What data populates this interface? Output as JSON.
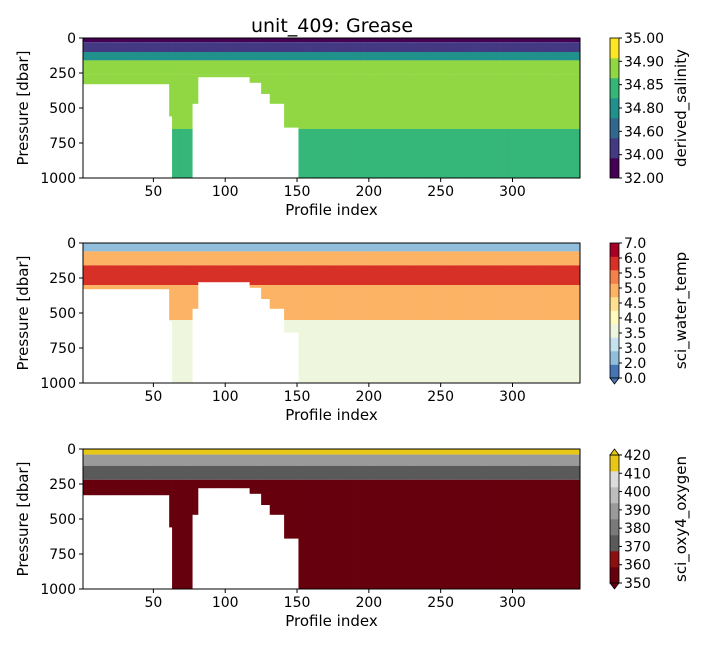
{
  "figure": {
    "title": "unit_409: Grease"
  },
  "chart_data": [
    {
      "type": "heatmap",
      "title": "",
      "xlabel": "Profile index",
      "ylabel": "Pressure [dbar]",
      "xlim": [
        1,
        347
      ],
      "ylim": [
        1000,
        0
      ],
      "xticks": [
        50,
        100,
        150,
        200,
        250,
        300
      ],
      "yticks": [
        0,
        250,
        500,
        750,
        1000
      ],
      "colorbar": {
        "label": "derived_salinity",
        "levels": [
          32.0,
          34.0,
          34.6,
          34.8,
          34.85,
          34.9,
          35.0
        ],
        "tick_labels": [
          "32.00",
          "34.00",
          "34.60",
          "34.80",
          "34.85",
          "34.90",
          "35.00"
        ],
        "colors": [
          "#440154",
          "#443983",
          "#31688e",
          "#21918c",
          "#35b779",
          "#90d743",
          "#fde725"
        ],
        "extend": "neither"
      },
      "depth_max_by_profile": [
        [
          1,
          330
        ],
        [
          60,
          330
        ],
        [
          61,
          560
        ],
        [
          62,
          1000
        ],
        [
          75,
          1000
        ],
        [
          76,
          470
        ],
        [
          80,
          280
        ],
        [
          115,
          280
        ],
        [
          116,
          320
        ],
        [
          124,
          400
        ],
        [
          130,
          470
        ],
        [
          140,
          640
        ],
        [
          150,
          640
        ],
        [
          151,
          1000
        ],
        [
          347,
          1000
        ]
      ],
      "layers": [
        {
          "top": 0,
          "bottom": 30,
          "level": 0
        },
        {
          "top": 30,
          "bottom": 100,
          "level": 1
        },
        {
          "top": 100,
          "bottom": 160,
          "level": 3
        },
        {
          "top": 160,
          "bottom": 260,
          "level": 5
        },
        {
          "top": 260,
          "bottom": 650,
          "level": 5
        },
        {
          "top": 650,
          "bottom": 1000,
          "level": 4
        }
      ]
    },
    {
      "type": "heatmap",
      "title": "",
      "xlabel": "Profile index",
      "ylabel": "Pressure [dbar]",
      "xlim": [
        1,
        347
      ],
      "ylim": [
        1000,
        0
      ],
      "xticks": [
        50,
        100,
        150,
        200,
        250,
        300
      ],
      "yticks": [
        0,
        250,
        500,
        750,
        1000
      ],
      "colorbar": {
        "label": "sci_water_temp",
        "levels": [
          0.0,
          2.0,
          3.0,
          3.5,
          4.0,
          4.5,
          5.0,
          5.5,
          6.0,
          7.0
        ],
        "tick_labels": [
          "0.0",
          "2.0",
          "3.0",
          "3.5",
          "4.0",
          "4.5",
          "5.0",
          "5.5",
          "6.0",
          "7.0"
        ],
        "colors": [
          "#4575b4",
          "#91bfdb",
          "#c6e2ee",
          "#eef7de",
          "#fffbbc",
          "#fee090",
          "#fdb365",
          "#f4804b",
          "#d73027",
          "#a50026"
        ],
        "extend": "min"
      },
      "depth_max_by_profile": [
        [
          1,
          330
        ],
        [
          60,
          330
        ],
        [
          61,
          560
        ],
        [
          62,
          1000
        ],
        [
          75,
          1000
        ],
        [
          76,
          470
        ],
        [
          80,
          280
        ],
        [
          115,
          280
        ],
        [
          116,
          320
        ],
        [
          124,
          400
        ],
        [
          130,
          470
        ],
        [
          140,
          640
        ],
        [
          150,
          640
        ],
        [
          151,
          1000
        ],
        [
          347,
          1000
        ]
      ],
      "layers": [
        {
          "top": 0,
          "bottom": 60,
          "level": 1
        },
        {
          "top": 60,
          "bottom": 160,
          "level": 6
        },
        {
          "top": 160,
          "bottom": 300,
          "level": 8
        },
        {
          "top": 300,
          "bottom": 550,
          "level": 6
        },
        {
          "top": 550,
          "bottom": 1000,
          "level": 3
        }
      ]
    },
    {
      "type": "heatmap",
      "title": "",
      "xlabel": "Profile index",
      "ylabel": "Pressure [dbar]",
      "xlim": [
        1,
        347
      ],
      "ylim": [
        1000,
        0
      ],
      "xticks": [
        50,
        100,
        150,
        200,
        250,
        300
      ],
      "yticks": [
        0,
        250,
        500,
        750,
        1000
      ],
      "colorbar": {
        "label": "sci_oxy4_oxygen",
        "levels": [
          350,
          360,
          370,
          380,
          390,
          400,
          410,
          420
        ],
        "tick_labels": [
          "350",
          "360",
          "370",
          "380",
          "390",
          "400",
          "410",
          "420"
        ],
        "colors": [
          "#67000d",
          "#8c1010",
          "#5a5a5a",
          "#7a7a7a",
          "#9a9a9a",
          "#bdbdbd",
          "#dcdcdc",
          "#e8c817"
        ],
        "extend": "both"
      },
      "depth_max_by_profile": [
        [
          1,
          330
        ],
        [
          60,
          330
        ],
        [
          61,
          560
        ],
        [
          62,
          1000
        ],
        [
          75,
          1000
        ],
        [
          76,
          470
        ],
        [
          80,
          280
        ],
        [
          115,
          280
        ],
        [
          116,
          320
        ],
        [
          124,
          400
        ],
        [
          130,
          470
        ],
        [
          140,
          640
        ],
        [
          150,
          640
        ],
        [
          151,
          1000
        ],
        [
          347,
          1000
        ]
      ],
      "layers": [
        {
          "top": 0,
          "bottom": 40,
          "level": 7
        },
        {
          "top": 40,
          "bottom": 120,
          "level": 4
        },
        {
          "top": 120,
          "bottom": 220,
          "level": 2
        },
        {
          "top": 220,
          "bottom": 1000,
          "level": 0
        }
      ]
    }
  ]
}
